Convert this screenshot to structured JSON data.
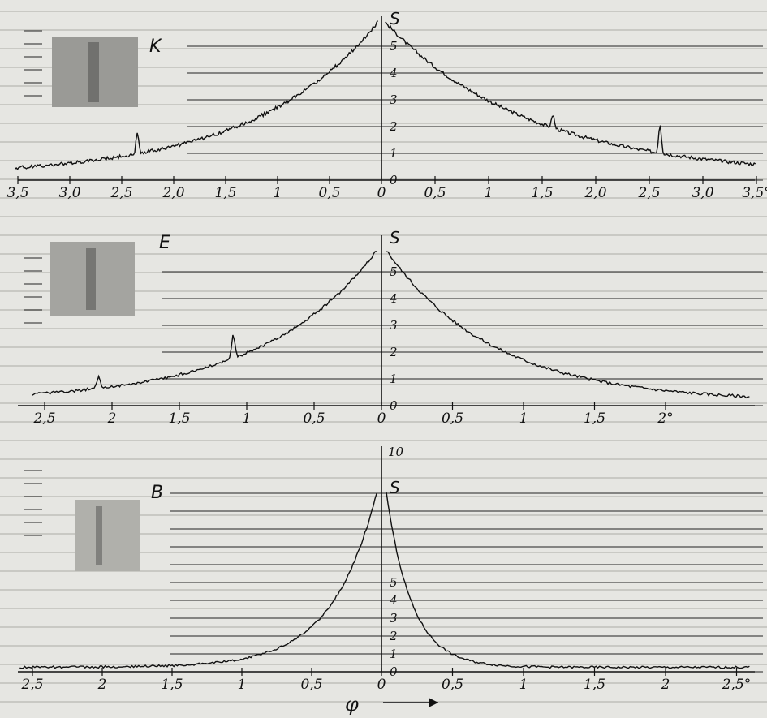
{
  "figure": {
    "phi_label": "φ"
  },
  "chart_data": [
    {
      "type": "line",
      "panel_label": "K",
      "y_title": "S",
      "y_ticks": [
        "0",
        "1",
        "2",
        "3",
        "4",
        "5"
      ],
      "left_tick_labels": [
        "3,5",
        "3,0",
        "2,5",
        "2,0",
        "1,5",
        "1",
        "0,5",
        "0"
      ],
      "left_tick_values": [
        3.5,
        3.0,
        2.5,
        2.0,
        1.5,
        1.0,
        0.5,
        0
      ],
      "right_tick_labels": [
        "0,5",
        "1",
        "1,5",
        "2,0",
        "2,5",
        "3,0",
        "3,5°"
      ],
      "right_tick_values": [
        0.5,
        1.0,
        1.5,
        2.0,
        2.5,
        3.0,
        3.5
      ],
      "xlim": [
        -3.6,
        3.6
      ],
      "ylim": [
        0,
        6
      ],
      "peak": 5.9,
      "left_scale": 1.2,
      "right_scale": 1.35,
      "left_spikes": [
        [
          2.35,
          0.8
        ]
      ],
      "right_spikes": [
        [
          1.6,
          0.5
        ],
        [
          2.6,
          1.1
        ]
      ],
      "noise": 0.13,
      "floor": 0.15
    },
    {
      "type": "line",
      "panel_label": "E",
      "y_title": "S",
      "y_ticks": [
        "0",
        "1",
        "2",
        "3",
        "4",
        "5"
      ],
      "left_tick_labels": [
        "2,5",
        "2",
        "1,5",
        "1",
        "0,5",
        "0"
      ],
      "left_tick_values": [
        2.5,
        2.0,
        1.5,
        1.0,
        0.5,
        0
      ],
      "right_tick_labels": [
        "0,5",
        "1",
        "1,5",
        "2°"
      ],
      "right_tick_values": [
        0.5,
        1.0,
        1.5,
        2.0
      ],
      "xlim": [
        -2.6,
        2.6
      ],
      "ylim": [
        0,
        6
      ],
      "peak": 5.8,
      "left_scale": 0.85,
      "right_scale": 0.75,
      "left_spikes": [
        [
          1.1,
          0.9
        ],
        [
          2.1,
          0.4
        ]
      ],
      "right_spikes": [],
      "noise": 0.11,
      "floor": 0.15
    },
    {
      "type": "line",
      "panel_label": "B",
      "y_title": "S",
      "y_top_label": "10",
      "y_ticks": [
        "0",
        "1",
        "2",
        "3",
        "4",
        "5"
      ],
      "left_tick_labels": [
        "2,5",
        "2",
        "1,5",
        "1",
        "0,5",
        "0"
      ],
      "left_tick_values": [
        2.5,
        2.0,
        1.5,
        1.0,
        0.5,
        0
      ],
      "right_tick_labels": [
        "0,5",
        "1",
        "1,5",
        "2",
        "2,5°"
      ],
      "right_tick_values": [
        0.5,
        1.0,
        1.5,
        2.0,
        2.5
      ],
      "xlim": [
        -2.6,
        2.6
      ],
      "ylim": [
        0,
        7
      ],
      "peak": 10,
      "left_scale": 0.32,
      "right_scale": 0.18,
      "left_spikes": [],
      "right_spikes": [],
      "noise": 0.12,
      "floor": 0.25
    }
  ]
}
